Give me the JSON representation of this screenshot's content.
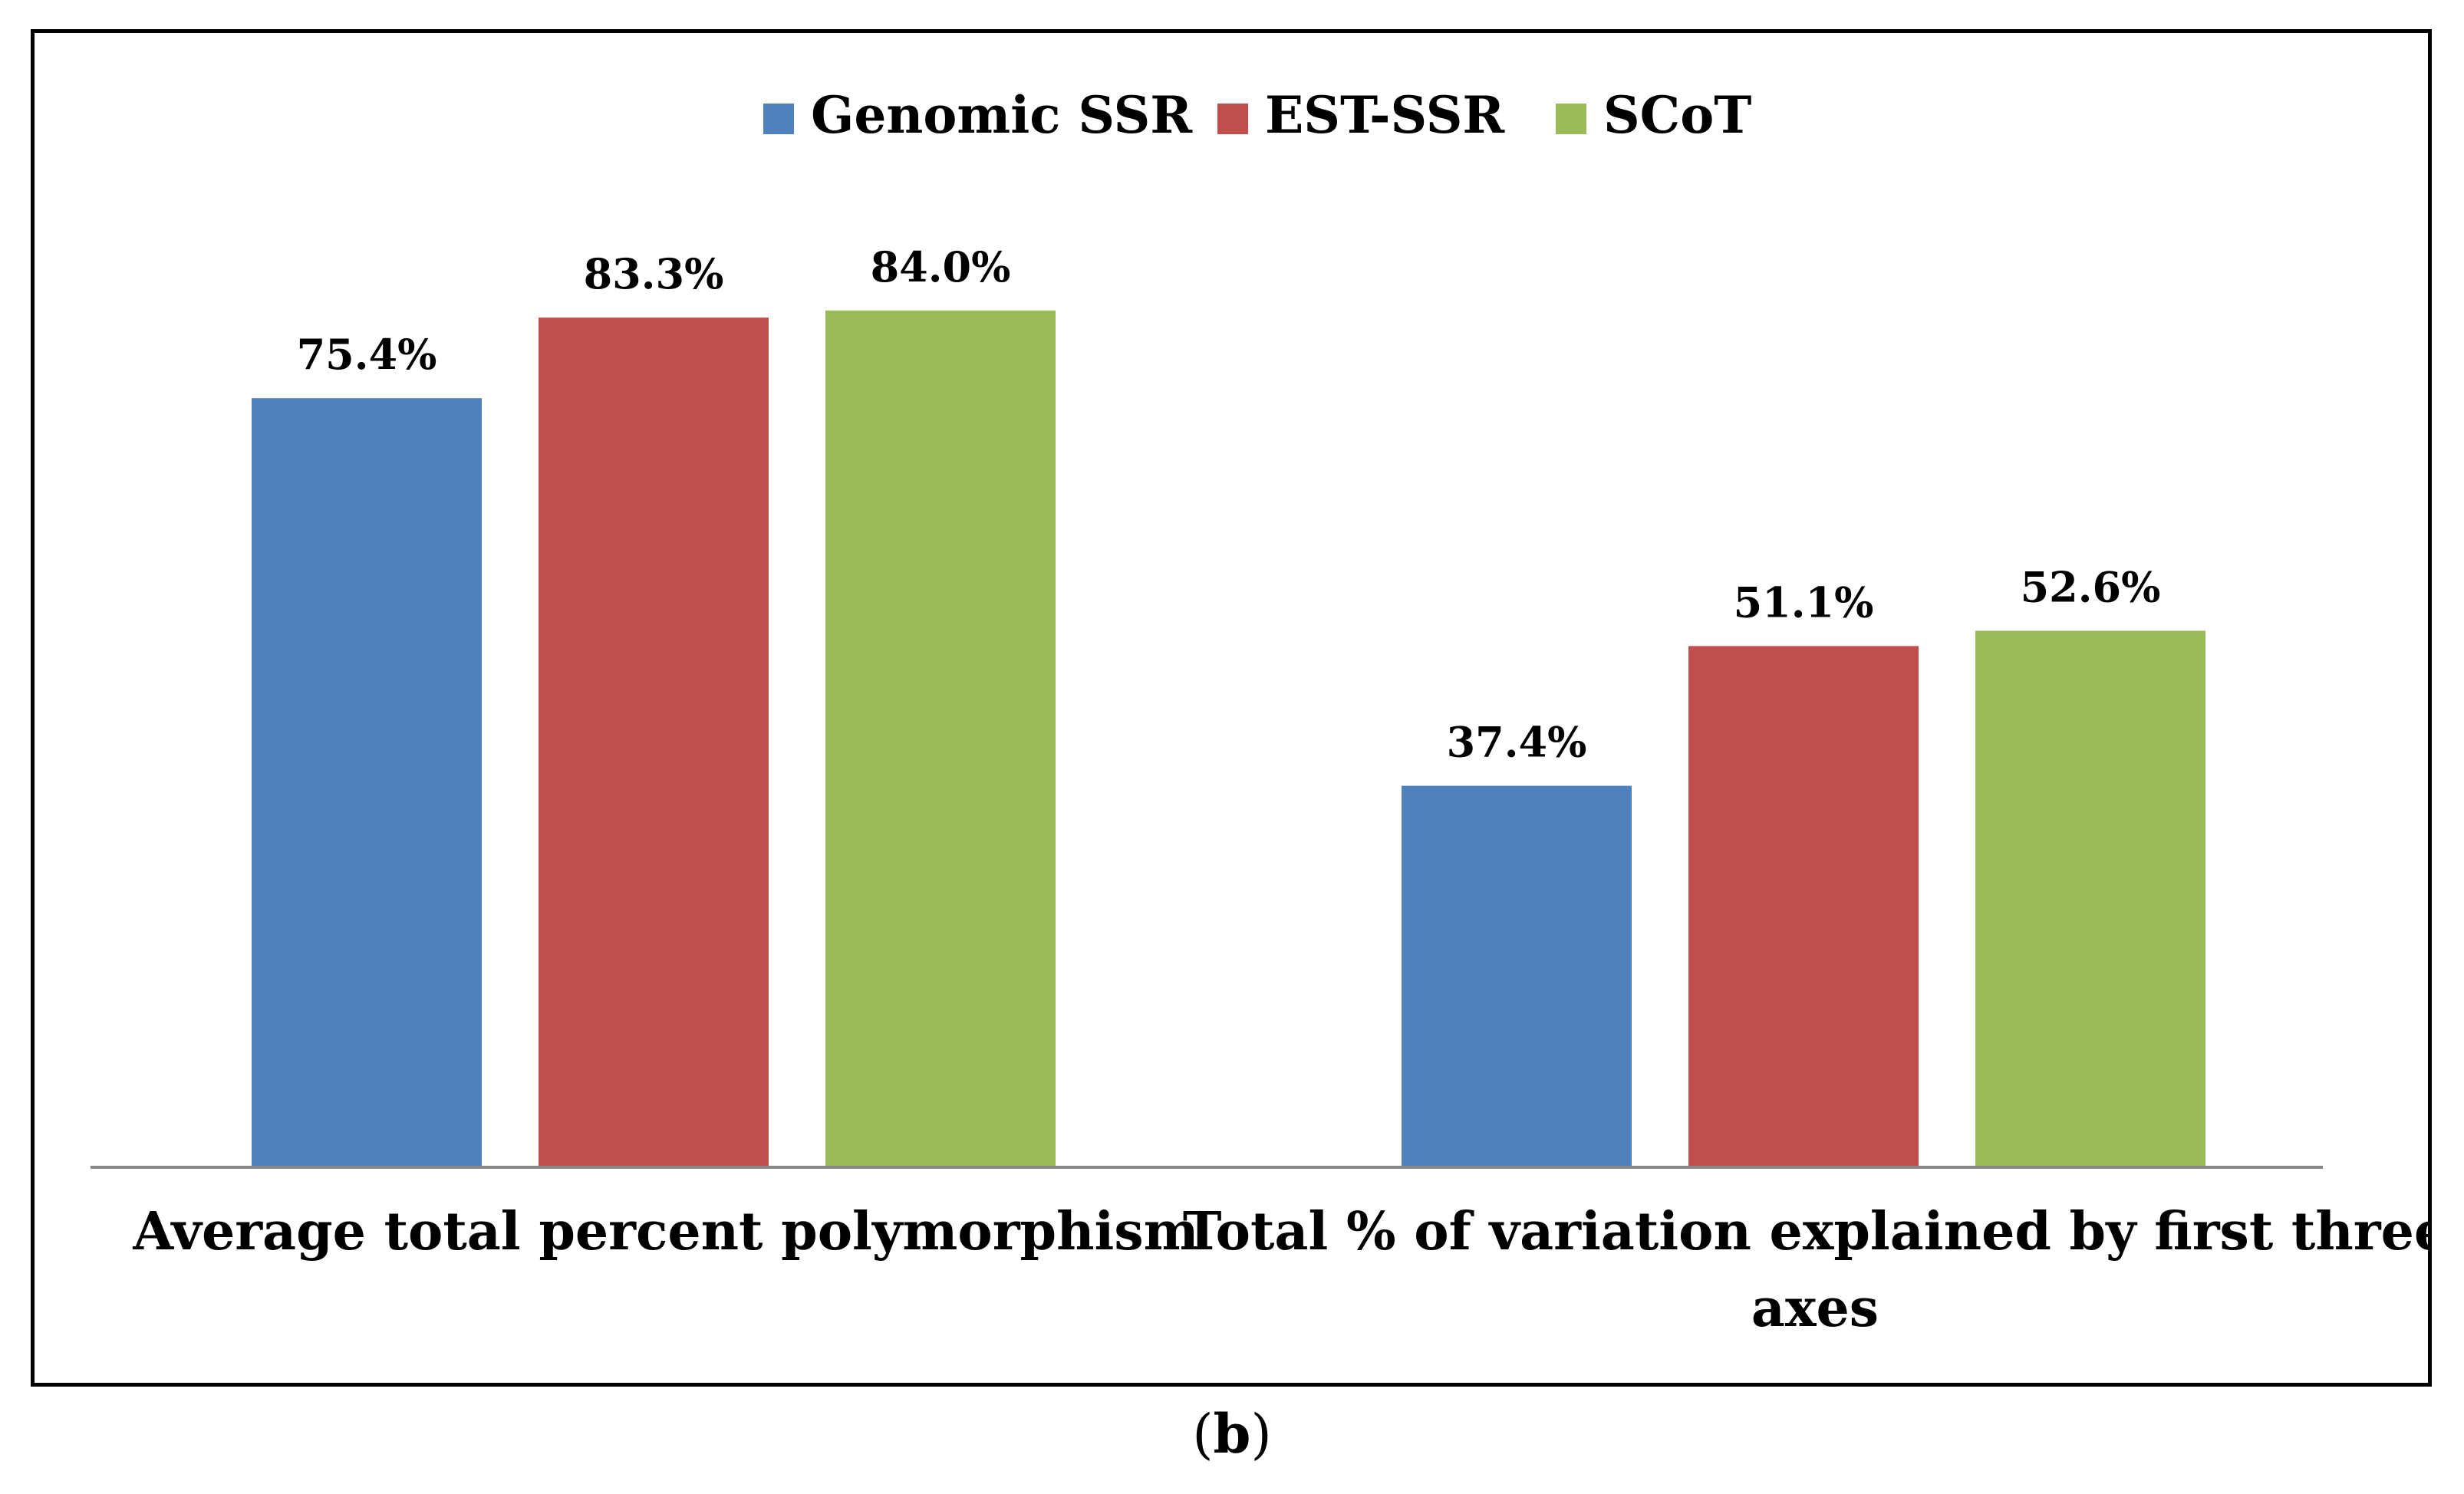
{
  "caption": {
    "open": "(",
    "letter": "b",
    "close": ")"
  },
  "chart_data": {
    "type": "bar",
    "title": "",
    "xlabel": "",
    "ylabel": "",
    "ylim": [
      0,
      100
    ],
    "legend_position": "top-center",
    "grid": false,
    "categories": [
      "Average total percent polymorphism",
      "Total % of variation explained by first three axes"
    ],
    "series": [
      {
        "name": "Genomic SSR",
        "color": "#4F81BD",
        "values": [
          75.4,
          37.4
        ],
        "labels": [
          "75.4%",
          "37.4%"
        ]
      },
      {
        "name": "EST-SSR",
        "color": "#C0504D",
        "values": [
          83.3,
          51.1
        ],
        "labels": [
          "83.3%",
          "51.1%"
        ]
      },
      {
        "name": "SCoT",
        "color": "#9BBB59",
        "values": [
          84.0,
          52.6
        ],
        "labels": [
          "84.0%",
          "52.6%"
        ]
      }
    ]
  }
}
